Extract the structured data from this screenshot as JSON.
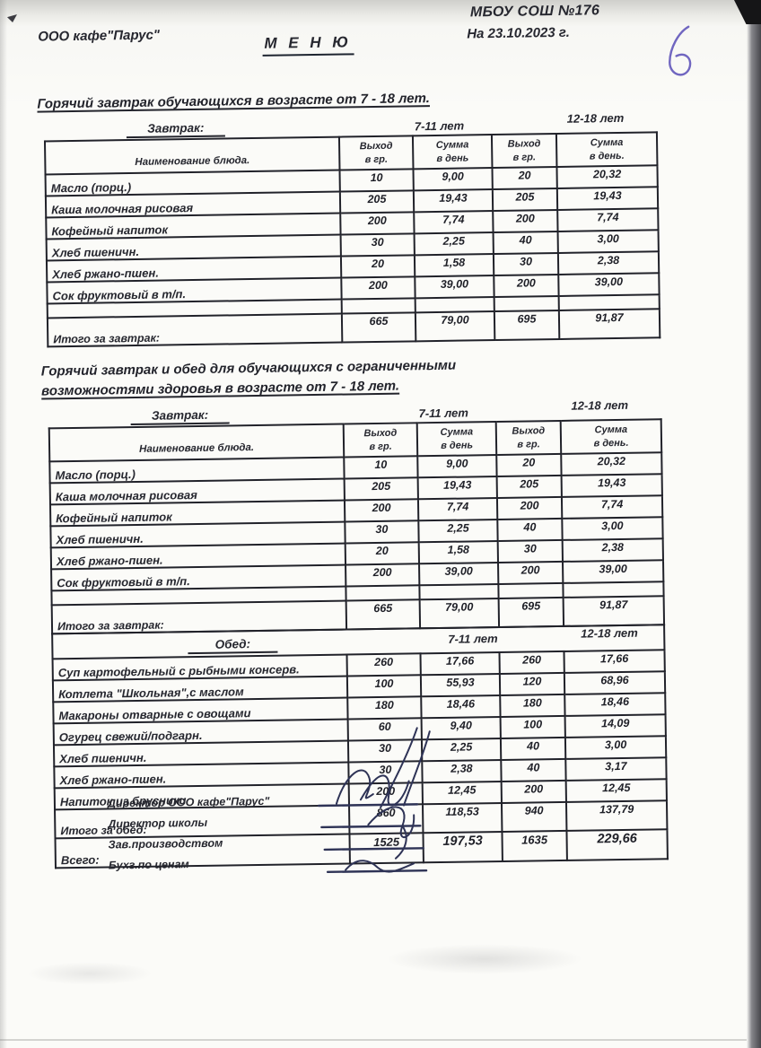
{
  "header": {
    "org": "ООО кафе\"Парус\"",
    "title": "М Е Н Ю",
    "school": "МБОУ СОШ  №176",
    "date": "На 23.10.2023 г.",
    "handwritten_number": "6"
  },
  "tables_common": {
    "name_header": "Наименование блюда.",
    "col_headers": [
      "Выход\nв гр.",
      "Сумма\nв день",
      "Выход\nв гр.",
      "Сумма\nв день."
    ],
    "age_groups": [
      "7-11 лет",
      "12-18 лет"
    ]
  },
  "sections": [
    {
      "title_lines": [
        "Горячий завтрак обучающихся в возрасте  от 7 - 18 лет."
      ],
      "blocks": [
        {
          "meal_label": "Завтрак:",
          "show_col_headers": true,
          "rows": [
            {
              "name": "Масло (порц.)",
              "values": [
                "10",
                "9,00",
                "20",
                "20,32"
              ]
            },
            {
              "name": "Каша молочная рисовая",
              "values": [
                "205",
                "19,43",
                "205",
                "19,43"
              ]
            },
            {
              "name": "Кофейный напиток",
              "values": [
                "200",
                "7,74",
                "200",
                "7,74"
              ]
            },
            {
              "name": "Хлеб пшеничн.",
              "values": [
                "30",
                "2,25",
                "40",
                "3,00"
              ]
            },
            {
              "name": "Хлеб ржано-пшен.",
              "values": [
                "20",
                "1,58",
                "30",
                "2,38"
              ]
            },
            {
              "name": "Сок фруктовый в т/п.",
              "values": [
                "200",
                "39,00",
                "200",
                "39,00"
              ]
            },
            {
              "name": "",
              "values": [
                "",
                "",
                "",
                ""
              ],
              "spacer": true
            },
            {
              "name": "Итого за завтрак:",
              "values": [
                "665",
                "79,00",
                "695",
                "91,87"
              ],
              "total": true
            }
          ]
        }
      ]
    },
    {
      "title_lines": [
        "Горячий завтрак и обед для обучающихся с ограниченными",
        "возможностями здоровья в возрасте от 7 - 18 лет."
      ],
      "blocks": [
        {
          "meal_label": "Завтрак:",
          "show_col_headers": true,
          "rows": [
            {
              "name": "Масло (порц.)",
              "values": [
                "10",
                "9,00",
                "20",
                "20,32"
              ]
            },
            {
              "name": "Каша молочная рисовая",
              "values": [
                "205",
                "19,43",
                "205",
                "19,43"
              ]
            },
            {
              "name": "Кофейный напиток",
              "values": [
                "200",
                "7,74",
                "200",
                "7,74"
              ]
            },
            {
              "name": "Хлеб пшеничн.",
              "values": [
                "30",
                "2,25",
                "40",
                "3,00"
              ]
            },
            {
              "name": "Хлеб ржано-пшен.",
              "values": [
                "20",
                "1,58",
                "30",
                "2,38"
              ]
            },
            {
              "name": "Сок фруктовый в т/п.",
              "values": [
                "200",
                "39,00",
                "200",
                "39,00"
              ]
            },
            {
              "name": "",
              "values": [
                "",
                "",
                "",
                ""
              ],
              "spacer": true
            },
            {
              "name": "Итого за завтрак:",
              "values": [
                "665",
                "79,00",
                "695",
                "91,87"
              ],
              "total": true
            }
          ]
        },
        {
          "meal_label": "Обед:",
          "show_col_headers": false,
          "rows": [
            {
              "name": "Суп картофельный с рыбными консерв.",
              "values": [
                "260",
                "17,66",
                "260",
                "17,66"
              ]
            },
            {
              "name": "Котлета \"Школьная\",с маслом",
              "values": [
                "100",
                "55,93",
                "120",
                "68,96"
              ]
            },
            {
              "name": "Макароны отварные с овощами",
              "values": [
                "180",
                "18,46",
                "180",
                "18,46"
              ]
            },
            {
              "name": "Огурец свежий/подгарн.",
              "values": [
                "60",
                "9,40",
                "100",
                "14,09"
              ]
            },
            {
              "name": "Хлеб пшеничн.",
              "values": [
                "30",
                "2,25",
                "40",
                "3,00"
              ]
            },
            {
              "name": "Хлеб ржано-пшен.",
              "values": [
                "30",
                "2,38",
                "40",
                "3,17"
              ]
            },
            {
              "name": "Напиток из брусники",
              "values": [
                "200",
                "12,45",
                "200",
                "12,45"
              ]
            },
            {
              "name": "Итого за обед:",
              "values": [
                "860",
                "118,53",
                "940",
                "137,79"
              ],
              "total": true
            },
            {
              "name": "Всего:",
              "values": [
                "1525",
                "197,53",
                "1635",
                "229,66"
              ],
              "total": true,
              "grand": true
            }
          ]
        }
      ]
    }
  ],
  "signatures": [
    {
      "label": "Директор ООО кафе\"Парус\""
    },
    {
      "label": "Директор школы"
    },
    {
      "label": "Зав.производством"
    },
    {
      "label": "Бухг.по ценам"
    }
  ],
  "colors": {
    "ink": "#26272f",
    "pen": "#7066c0",
    "signature_ink": "#2e3356",
    "paper": "#fbfbf8"
  }
}
